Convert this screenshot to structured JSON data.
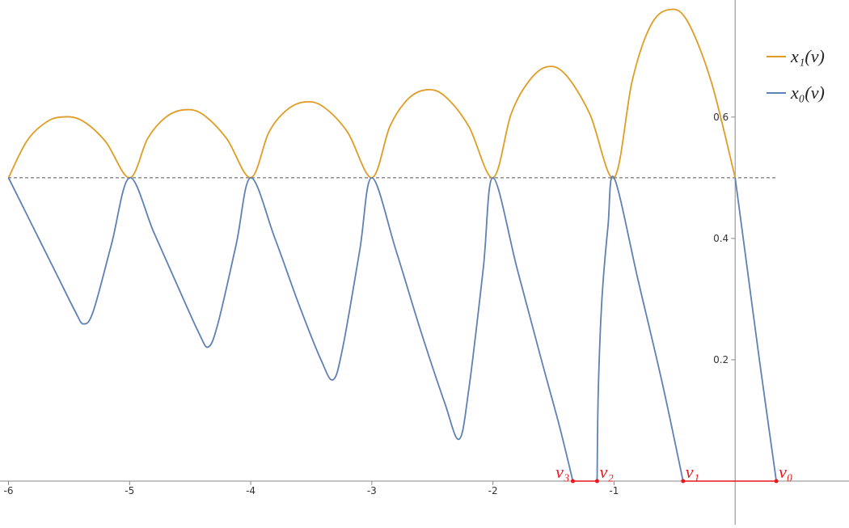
{
  "chart_data": {
    "type": "line",
    "xlim": [
      -6.07,
      0.94
    ],
    "ylim": [
      -0.072,
      0.793
    ],
    "xticks": [
      -6,
      -5,
      -4,
      -3,
      -2,
      -1
    ],
    "yticks": [
      0.2,
      0.4,
      0.6
    ],
    "reference_line": 0.5,
    "series": [
      {
        "name": "x₁(ν)",
        "color": "#e19c24",
        "x": [
          -6,
          -5.85,
          -5.7,
          -5.57,
          -5.4,
          -5.2,
          -5,
          -4.85,
          -4.7,
          -4.55,
          -4.4,
          -4.2,
          -4,
          -3.85,
          -3.7,
          -3.55,
          -3.4,
          -3.2,
          -3,
          -2.85,
          -2.7,
          -2.55,
          -2.4,
          -2.2,
          -2,
          -1.85,
          -1.7,
          -1.55,
          -1.4,
          -1.2,
          -1,
          -0.85,
          -0.7,
          -0.55,
          -0.4,
          -0.2,
          0
        ],
        "values": [
          0.5,
          0.56,
          0.59,
          0.6,
          0.595,
          0.56,
          0.5,
          0.565,
          0.6,
          0.612,
          0.605,
          0.565,
          0.5,
          0.575,
          0.612,
          0.625,
          0.617,
          0.575,
          0.5,
          0.585,
          0.63,
          0.645,
          0.635,
          0.585,
          0.5,
          0.605,
          0.66,
          0.683,
          0.67,
          0.605,
          0.5,
          0.66,
          0.75,
          0.777,
          0.76,
          0.66,
          0.5
        ]
      },
      {
        "name": "x₀(ν)",
        "color": "#5e81b5",
        "x": [
          -6,
          -5.8,
          -5.6,
          -5.45,
          -5.38,
          -5.3,
          -5.15,
          -5,
          -4.8,
          -4.6,
          -4.43,
          -4.35,
          -4.27,
          -4.12,
          -4,
          -3.8,
          -3.6,
          -3.42,
          -3.32,
          -3.24,
          -3.1,
          -3,
          -2.8,
          -2.6,
          -2.4,
          -2.28,
          -2.2,
          -2.08,
          -2,
          -1.8,
          -1.6,
          -1.45,
          -1.34,
          -1.24,
          -1.14,
          -1.13,
          -1.1,
          -1.05,
          -1,
          -0.8,
          -0.6,
          -0.43,
          -0.2,
          0,
          0.1,
          0.2,
          0.34
        ],
        "values": [
          0.5,
          0.42,
          0.34,
          0.28,
          0.259,
          0.28,
          0.39,
          0.5,
          0.41,
          0.32,
          0.245,
          0.221,
          0.26,
          0.39,
          0.5,
          0.4,
          0.29,
          0.2,
          0.167,
          0.22,
          0.38,
          0.5,
          0.38,
          0.25,
          0.13,
          0.069,
          0.15,
          0.35,
          0.5,
          0.35,
          0.2,
          0.09,
          0,
          null,
          0,
          0.15,
          0.3,
          0.42,
          0.5,
          0.33,
          0.16,
          0,
          null,
          0.5,
          0.35,
          0.2,
          0
        ]
      }
    ],
    "points": {
      "color": "#e8161d",
      "labels": [
        "ν₃",
        "ν₂",
        "ν₁",
        "ν₀"
      ],
      "x": [
        -1.34,
        -1.14,
        -0.43,
        0.34
      ],
      "values": [
        0,
        0,
        0,
        0
      ]
    }
  }
}
